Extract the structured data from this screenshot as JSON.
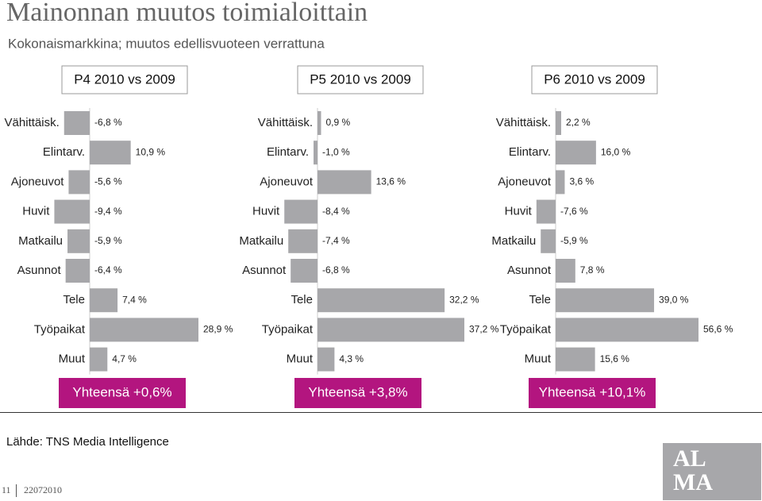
{
  "title": "Mainonnan muutos toimialoittain",
  "subtitle": "Kokonaismarkkina; muutos edellisvuoteen verrattuna",
  "source": "Lähde: TNS Media Intelligence",
  "page_number": "11",
  "date": "22072010",
  "logo": [
    "AL",
    "MA"
  ],
  "chart_data": [
    {
      "type": "bar",
      "orientation": "horizontal",
      "title": "P4 2010 vs 2009",
      "color": "#a7a7aa",
      "annotation": "Yhteensä +0,6%",
      "categories": [
        "Vähittäisk.",
        "Elintarv.",
        "Ajoneuvot",
        "Huvit",
        "Matkailu",
        "Asunnot",
        "Tele",
        "Työpaikat",
        "Muut"
      ],
      "values": [
        -6.8,
        10.9,
        -5.6,
        -9.4,
        -5.9,
        -6.4,
        7.4,
        28.9,
        4.7
      ],
      "value_labels": [
        "-6,8 %",
        "10,9 %",
        "-5,6 %",
        "-9,4 %",
        "-5,9 %",
        "-6,4 %",
        "7,4 %",
        "28,9 %",
        "4,7 %"
      ]
    },
    {
      "type": "bar",
      "orientation": "horizontal",
      "title": "P5 2010 vs 2009",
      "color": "#a7a7aa",
      "annotation": "Yhteensä +3,8%",
      "categories": [
        "Vähittäisk.",
        "Elintarv.",
        "Ajoneuvot",
        "Huvit",
        "Matkailu",
        "Asunnot",
        "Tele",
        "Työpaikat",
        "Muut"
      ],
      "values": [
        0.9,
        -1.0,
        13.6,
        -8.4,
        -7.4,
        -6.8,
        32.2,
        37.2,
        4.3
      ],
      "value_labels": [
        "0,9 %",
        "-1,0 %",
        "13,6 %",
        "-8,4 %",
        "-7,4 %",
        "-6,8 %",
        "32,2 %",
        "37,2 %",
        "4,3 %"
      ]
    },
    {
      "type": "bar",
      "orientation": "horizontal",
      "title": "P6 2010 vs 2009",
      "color": "#a7a7aa",
      "annotation": "Yhteensä +10,1%",
      "categories": [
        "Vähittäisk.",
        "Elintarv.",
        "Ajoneuvot",
        "Huvit",
        "Matkailu",
        "Asunnot",
        "Tele",
        "Työpaikat",
        "Muut"
      ],
      "values": [
        2.2,
        16.0,
        3.6,
        -7.6,
        -5.9,
        7.8,
        39.0,
        56.6,
        15.6
      ],
      "value_labels": [
        "2,2 %",
        "16,0 %",
        "3,6 %",
        "-7,6 %",
        "-5,9 %",
        "7,8 %",
        "39,0 %",
        "56,6 %",
        "15,6 %"
      ]
    }
  ]
}
